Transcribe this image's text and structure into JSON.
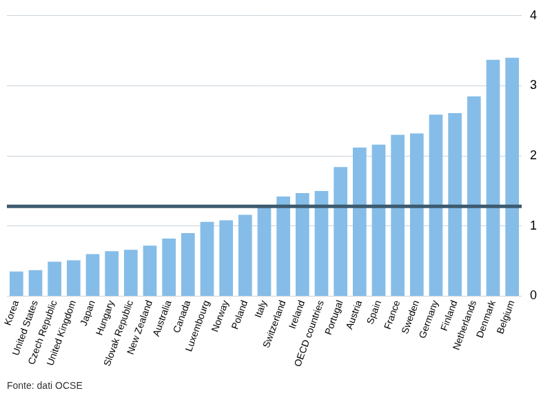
{
  "chart_data": {
    "type": "bar",
    "categories": [
      "Korea",
      "United States",
      "Czech Republic",
      "United Kingdom",
      "Japan",
      "Hungary",
      "Slovak Republic",
      "New Zealand",
      "Australia",
      "Canada",
      "Luxembourg",
      "Norway",
      "Poland",
      "Italy",
      "Switzerland",
      "Ireland",
      "OECD countries",
      "Portugal",
      "Austria",
      "Spain",
      "France",
      "Sweden",
      "Germany",
      "Finland",
      "Netherlands",
      "Denmark",
      "Belgium"
    ],
    "values": [
      0.35,
      0.37,
      0.49,
      0.51,
      0.6,
      0.64,
      0.66,
      0.72,
      0.82,
      0.9,
      1.06,
      1.08,
      1.16,
      1.29,
      1.42,
      1.47,
      1.5,
      1.84,
      2.12,
      2.16,
      2.3,
      2.32,
      2.59,
      2.61,
      2.85,
      3.37,
      3.4
    ],
    "color": "#85bde8",
    "reference_line": 1.28,
    "source": "Fonte: dati OCSE",
    "ylim": [
      0,
      4
    ],
    "yticks": [
      0,
      1,
      2,
      3,
      4
    ],
    "grid": true
  }
}
